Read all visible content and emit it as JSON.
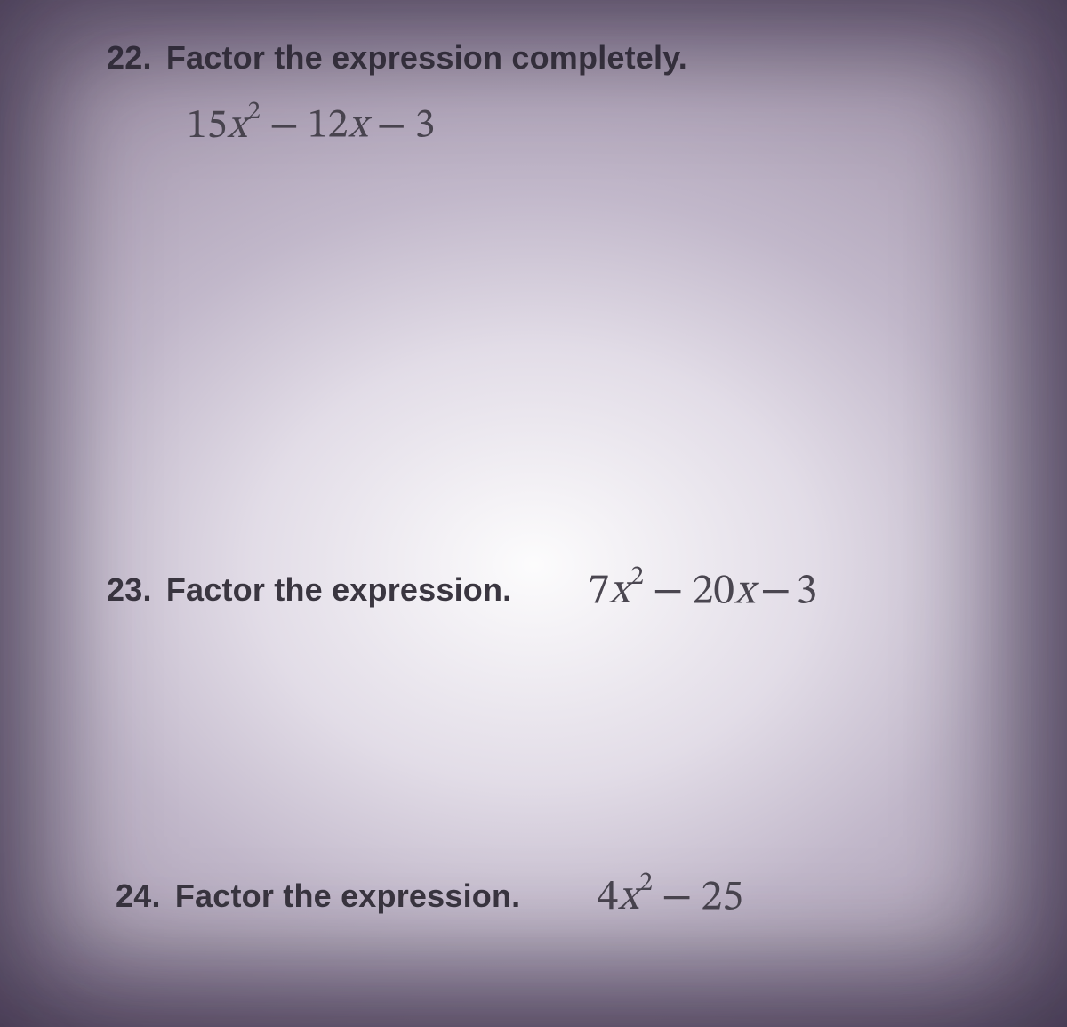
{
  "colors": {
    "text": "#3e3b46",
    "math": "#4a4650",
    "highlight_background": "#ffffff",
    "shadow_background": "#8b7e98"
  },
  "typography": {
    "prompt_font_family": "Helvetica Neue, Helvetica, Arial, sans-serif",
    "prompt_font_size_pt": 27,
    "prompt_font_weight": 600,
    "math_font_family": "Cambria Math, STIX Two Math, Times New Roman, serif",
    "math_font_size_pt": 35
  },
  "problems": [
    {
      "id": "p22",
      "number": "22.",
      "prompt": "Factor the expression completely.",
      "layout": "stacked",
      "expression": {
        "terms": [
          {
            "coef": "15",
            "var": "x",
            "exp": "2"
          },
          {
            "op": "−",
            "coef": "12",
            "var": "x"
          },
          {
            "op": "−",
            "coef": "3"
          }
        ]
      }
    },
    {
      "id": "p23",
      "number": "23.",
      "prompt": "Factor the expression.",
      "layout": "inline",
      "expression": {
        "terms": [
          {
            "coef": "7",
            "var": "x",
            "exp": "2"
          },
          {
            "op": "−",
            "coef": "20",
            "var": "x"
          },
          {
            "op": "−",
            "coef": "3"
          }
        ]
      }
    },
    {
      "id": "p24",
      "number": "24.",
      "prompt": "Factor the expression.",
      "layout": "inline",
      "expression": {
        "terms": [
          {
            "coef": "4",
            "var": "x",
            "exp": "2"
          },
          {
            "op": "−",
            "coef": "25"
          }
        ]
      }
    }
  ]
}
